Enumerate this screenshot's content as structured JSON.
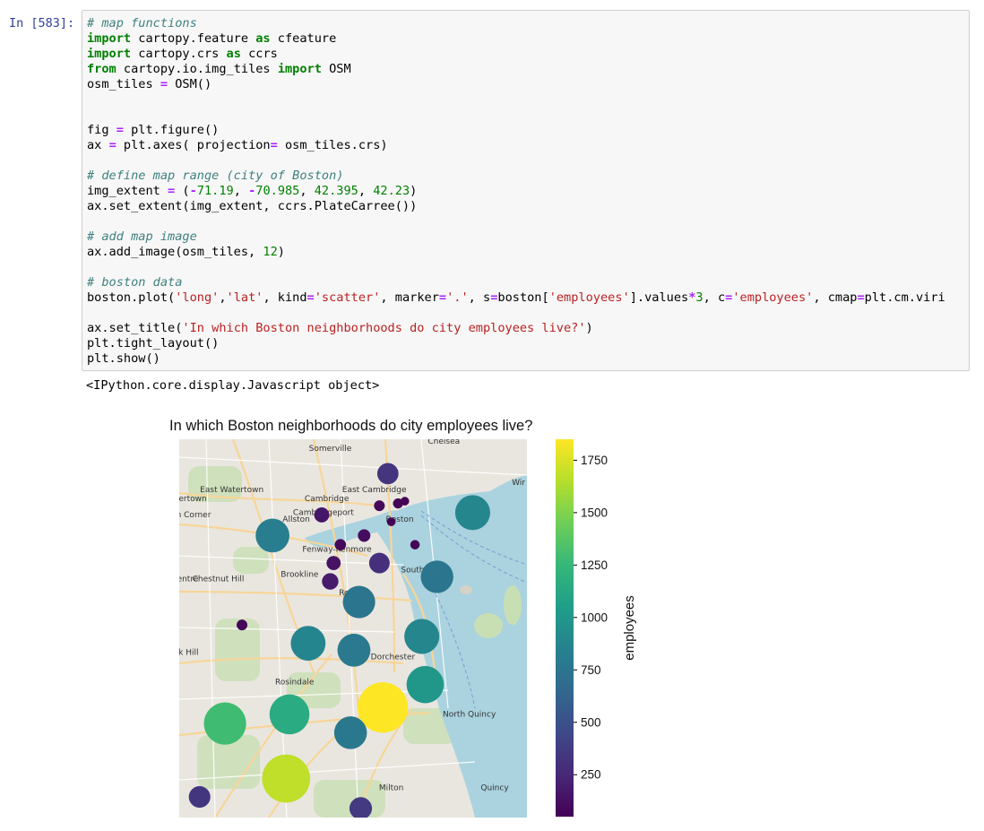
{
  "cell": {
    "prompt": "In [583]:",
    "code_lines": [
      [
        {
          "t": "# map functions",
          "c": "cm"
        }
      ],
      [
        {
          "t": "import",
          "c": "kw"
        },
        {
          "t": " cartopy.feature "
        },
        {
          "t": "as",
          "c": "kw"
        },
        {
          "t": " cfeature"
        }
      ],
      [
        {
          "t": "import",
          "c": "kw"
        },
        {
          "t": " cartopy.crs "
        },
        {
          "t": "as",
          "c": "kw"
        },
        {
          "t": " ccrs"
        }
      ],
      [
        {
          "t": "from",
          "c": "kw"
        },
        {
          "t": " cartopy.io.img_tiles "
        },
        {
          "t": "import",
          "c": "kw"
        },
        {
          "t": " OSM"
        }
      ],
      [
        {
          "t": "osm_tiles "
        },
        {
          "t": "=",
          "c": "op"
        },
        {
          "t": " OSM()"
        }
      ],
      [],
      [],
      [
        {
          "t": "fig "
        },
        {
          "t": "=",
          "c": "op"
        },
        {
          "t": " plt.figure()"
        }
      ],
      [
        {
          "t": "ax "
        },
        {
          "t": "=",
          "c": "op"
        },
        {
          "t": " plt.axes( projection"
        },
        {
          "t": "=",
          "c": "op"
        },
        {
          "t": " osm_tiles.crs)"
        }
      ],
      [],
      [
        {
          "t": "# define map range (city of Boston)",
          "c": "cm"
        }
      ],
      [
        {
          "t": "img_extent "
        },
        {
          "t": "=",
          "c": "op"
        },
        {
          "t": " ("
        },
        {
          "t": "-",
          "c": "op"
        },
        {
          "t": "71.19",
          "c": "nm"
        },
        {
          "t": ", "
        },
        {
          "t": "-",
          "c": "op"
        },
        {
          "t": "70.985",
          "c": "nm"
        },
        {
          "t": ", "
        },
        {
          "t": "42.395",
          "c": "nm"
        },
        {
          "t": ", "
        },
        {
          "t": "42.23",
          "c": "nm"
        },
        {
          "t": ")"
        }
      ],
      [
        {
          "t": "ax.set_extent(img_extent, ccrs.PlateCarree())"
        }
      ],
      [],
      [
        {
          "t": "# add map image",
          "c": "cm"
        }
      ],
      [
        {
          "t": "ax.add_image(osm_tiles, "
        },
        {
          "t": "12",
          "c": "nm"
        },
        {
          "t": ")"
        }
      ],
      [],
      [
        {
          "t": "# boston data",
          "c": "cm"
        }
      ],
      [
        {
          "t": "boston.plot("
        },
        {
          "t": "'long'",
          "c": "st"
        },
        {
          "t": ","
        },
        {
          "t": "'lat'",
          "c": "st"
        },
        {
          "t": ", kind"
        },
        {
          "t": "=",
          "c": "op"
        },
        {
          "t": "'scatter'",
          "c": "st"
        },
        {
          "t": ", marker"
        },
        {
          "t": "=",
          "c": "op"
        },
        {
          "t": "'.'",
          "c": "st"
        },
        {
          "t": ", s"
        },
        {
          "t": "=",
          "c": "op"
        },
        {
          "t": "boston["
        },
        {
          "t": "'employees'",
          "c": "st"
        },
        {
          "t": "].values"
        },
        {
          "t": "*",
          "c": "op"
        },
        {
          "t": "3",
          "c": "nm"
        },
        {
          "t": ", c"
        },
        {
          "t": "=",
          "c": "op"
        },
        {
          "t": "'employees'",
          "c": "st"
        },
        {
          "t": ", cmap"
        },
        {
          "t": "=",
          "c": "op"
        },
        {
          "t": "plt.cm.viri"
        }
      ],
      [],
      [
        {
          "t": "ax.set_title("
        },
        {
          "t": "'In which Boston neighborhoods do city employees live?'",
          "c": "st"
        },
        {
          "t": ")"
        }
      ],
      [
        {
          "t": "plt.tight_layout()"
        }
      ],
      [
        {
          "t": "plt.show()"
        }
      ]
    ],
    "output_text": "<IPython.core.display.Javascript object>"
  },
  "chart_data": {
    "type": "scatter",
    "title": "In which Boston neighborhoods do city employees live?",
    "extent": {
      "long_min": -71.19,
      "long_max": -70.985,
      "lat_min": 42.23,
      "lat_max": 42.395
    },
    "colorbar": {
      "label": "employees",
      "ticks": [
        250,
        500,
        750,
        1000,
        1250,
        1500,
        1750
      ],
      "range": [
        50,
        1850
      ],
      "colormap": "viridis"
    },
    "points": [
      {
        "long": -71.067,
        "lat": 42.38,
        "employees": 320
      },
      {
        "long": -71.017,
        "lat": 42.363,
        "employees": 880
      },
      {
        "long": -71.135,
        "lat": 42.353,
        "employees": 820
      },
      {
        "long": -71.106,
        "lat": 42.362,
        "employees": 160
      },
      {
        "long": -71.072,
        "lat": 42.366,
        "employees": 80
      },
      {
        "long": -71.061,
        "lat": 42.367,
        "employees": 70
      },
      {
        "long": -71.057,
        "lat": 42.368,
        "employees": 50
      },
      {
        "long": -71.095,
        "lat": 42.349,
        "employees": 90
      },
      {
        "long": -71.081,
        "lat": 42.353,
        "employees": 110
      },
      {
        "long": -71.065,
        "lat": 42.359,
        "employees": 50
      },
      {
        "long": -71.051,
        "lat": 42.349,
        "employees": 60
      },
      {
        "long": -71.099,
        "lat": 42.341,
        "employees": 140
      },
      {
        "long": -71.101,
        "lat": 42.333,
        "employees": 190
      },
      {
        "long": -71.072,
        "lat": 42.341,
        "employees": 300
      },
      {
        "long": -71.038,
        "lat": 42.335,
        "employees": 760
      },
      {
        "long": -71.084,
        "lat": 42.324,
        "employees": 750
      },
      {
        "long": -71.153,
        "lat": 42.314,
        "employees": 80
      },
      {
        "long": -71.114,
        "lat": 42.306,
        "employees": 870
      },
      {
        "long": -71.087,
        "lat": 42.303,
        "employees": 780
      },
      {
        "long": -71.047,
        "lat": 42.309,
        "employees": 880
      },
      {
        "long": -71.045,
        "lat": 42.288,
        "employees": 1000
      },
      {
        "long": -71.07,
        "lat": 42.278,
        "employees": 1850
      },
      {
        "long": -71.125,
        "lat": 42.275,
        "employees": 1150
      },
      {
        "long": -71.163,
        "lat": 42.271,
        "employees": 1290
      },
      {
        "long": -71.089,
        "lat": 42.267,
        "employees": 770
      },
      {
        "long": -71.127,
        "lat": 42.247,
        "employees": 1680
      },
      {
        "long": -71.178,
        "lat": 42.239,
        "employees": 330
      },
      {
        "long": -71.083,
        "lat": 42.234,
        "employees": 360
      }
    ]
  },
  "map_labels": [
    {
      "text": "Somerville",
      "long": -71.101,
      "lat": 42.39
    },
    {
      "text": "Chelsea",
      "long": -71.034,
      "lat": 42.393
    },
    {
      "text": "East Watertown",
      "long": -71.159,
      "lat": 42.372
    },
    {
      "text": "East Cambridge",
      "long": -71.075,
      "lat": 42.372
    },
    {
      "text": "Cambridge",
      "long": -71.103,
      "lat": 42.368
    },
    {
      "text": "tertown",
      "long": -71.183,
      "lat": 42.368
    },
    {
      "text": "Cambridgeport",
      "long": -71.105,
      "lat": 42.362
    },
    {
      "text": "on Corner",
      "long": -71.183,
      "lat": 42.361
    },
    {
      "text": "Allston",
      "long": -71.121,
      "lat": 42.359
    },
    {
      "text": "Boston",
      "long": -71.06,
      "lat": 42.359
    },
    {
      "text": "Fenway-Kenmore",
      "long": -71.097,
      "lat": 42.346
    },
    {
      "text": "South B",
      "long": -71.05,
      "lat": 42.337
    },
    {
      "text": "Brookline",
      "long": -71.119,
      "lat": 42.335
    },
    {
      "text": "entre",
      "long": -71.185,
      "lat": 42.333
    },
    {
      "text": "Chestnut Hill",
      "long": -71.167,
      "lat": 42.333
    },
    {
      "text": "Roxb",
      "long": -71.09,
      "lat": 42.327
    },
    {
      "text": "Rosindale",
      "long": -71.122,
      "lat": 42.288
    },
    {
      "text": "Dorchester",
      "long": -71.064,
      "lat": 42.299
    },
    {
      "text": "North Quincy",
      "long": -71.019,
      "lat": 42.274
    },
    {
      "text": "Milton",
      "long": -71.065,
      "lat": 42.242
    },
    {
      "text": "Quincy",
      "long": -71.004,
      "lat": 42.242
    },
    {
      "text": "Wir",
      "long": -70.99,
      "lat": 42.375
    },
    {
      "text": "ak Hill",
      "long": -71.186,
      "lat": 42.301
    }
  ]
}
